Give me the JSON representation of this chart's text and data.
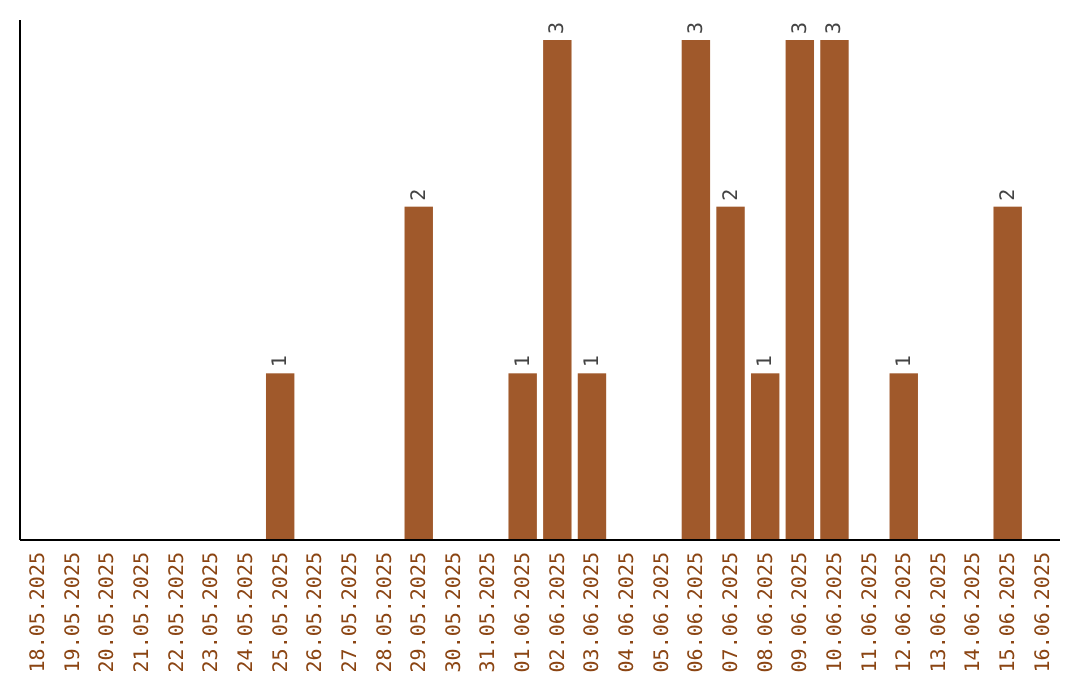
{
  "chart_data": {
    "type": "bar",
    "categories": [
      "18.05.2025",
      "19.05.2025",
      "20.05.2025",
      "21.05.2025",
      "22.05.2025",
      "23.05.2025",
      "24.05.2025",
      "25.05.2025",
      "26.05.2025",
      "27.05.2025",
      "28.05.2025",
      "29.05.2025",
      "30.05.2025",
      "31.05.2025",
      "01.06.2025",
      "02.06.2025",
      "03.06.2025",
      "04.06.2025",
      "05.06.2025",
      "06.06.2025",
      "07.06.2025",
      "08.06.2025",
      "09.06.2025",
      "10.06.2025",
      "11.06.2025",
      "12.06.2025",
      "13.06.2025",
      "14.06.2025",
      "15.06.2025",
      "16.06.2025"
    ],
    "values": [
      0,
      0,
      0,
      0,
      0,
      0,
      0,
      1,
      0,
      0,
      0,
      2,
      0,
      0,
      1,
      3,
      1,
      0,
      0,
      3,
      2,
      1,
      3,
      3,
      0,
      1,
      0,
      0,
      2,
      0
    ],
    "color": "#a0592b",
    "value_labels": [
      null,
      null,
      null,
      null,
      null,
      null,
      null,
      "1",
      null,
      null,
      null,
      "2",
      null,
      null,
      "1",
      "3",
      "1",
      null,
      null,
      "3",
      "2",
      "1",
      "3",
      "3",
      null,
      "1",
      null,
      null,
      "2",
      null
    ]
  }
}
